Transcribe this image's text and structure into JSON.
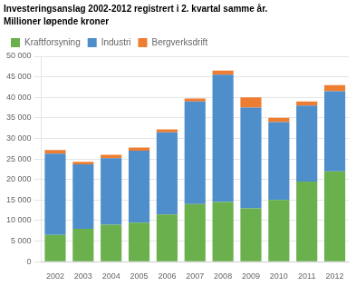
{
  "chart_data": {
    "type": "bar",
    "title": "Investeringsanslag 2002-2012 registrert i 2. kvartal samme år.",
    "subtitle": "Millioner løpende kroner",
    "categories": [
      "2002",
      "2003",
      "2004",
      "2005",
      "2006",
      "2007",
      "2008",
      "2009",
      "2010",
      "2011",
      "2012"
    ],
    "series": [
      {
        "name": "Kraftforsyning",
        "color": "#6ab04c",
        "values": [
          6500,
          8000,
          9000,
          9500,
          11500,
          14000,
          14500,
          13000,
          15000,
          19500,
          22000
        ]
      },
      {
        "name": "Industri",
        "color": "#4e8ecb",
        "values": [
          19800,
          15700,
          16200,
          17500,
          20000,
          25000,
          31000,
          24500,
          19000,
          18500,
          19500
        ]
      },
      {
        "name": "Bergverksdrift",
        "color": "#ed7d31",
        "values": [
          900,
          600,
          800,
          800,
          700,
          700,
          1000,
          2500,
          1000,
          1000,
          1500
        ]
      }
    ],
    "stacked": true,
    "ylim": [
      0,
      50000
    ],
    "yticks": [
      0,
      {
        "value": 5000,
        "label": "5 000"
      },
      {
        "value": 10000,
        "label": "10 000"
      },
      {
        "value": 15000,
        "label": "15 000"
      },
      {
        "value": 20000,
        "label": "20 000"
      },
      {
        "value": 25000,
        "label": "25 000"
      },
      {
        "value": 30000,
        "label": "30 000"
      },
      {
        "value": 35000,
        "label": "35 000"
      },
      {
        "value": 40000,
        "label": "40 000"
      },
      {
        "value": 45000,
        "label": "45 000"
      },
      {
        "value": 50000,
        "label": "50 000"
      }
    ],
    "grid": true,
    "legend": "upper left"
  }
}
